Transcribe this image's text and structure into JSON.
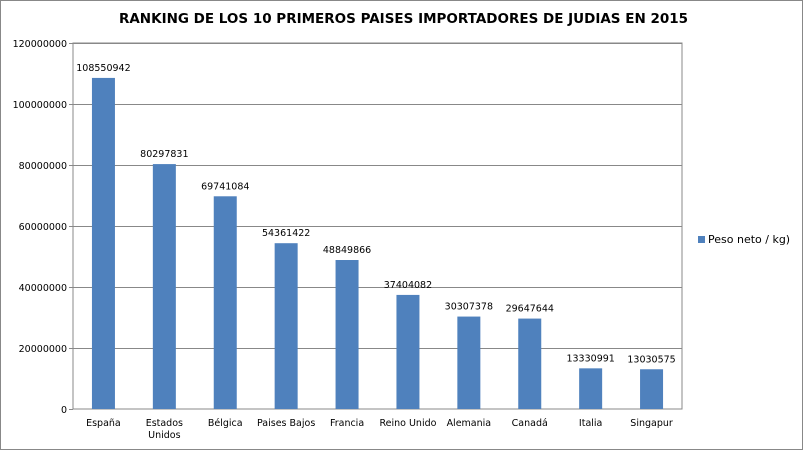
{
  "chart_data": {
    "type": "bar",
    "title": "RANKING DE LOS 10 PRIMEROS PAISES IMPORTADORES DE JUDIAS EN 2015",
    "xlabel": "",
    "ylabel": "",
    "categories": [
      [
        "España"
      ],
      [
        "Estados",
        "Unidos"
      ],
      [
        "Bélgica"
      ],
      [
        "Paises Bajos"
      ],
      [
        "Francia"
      ],
      [
        "Reino Unido"
      ],
      [
        "Alemania"
      ],
      [
        "Canadá"
      ],
      [
        "Italia"
      ],
      [
        "Singapur"
      ]
    ],
    "series": [
      {
        "name": "Peso neto / kg)",
        "color": "#4f81bd",
        "values": [
          108550942,
          80297831,
          69741084,
          54361422,
          48849866,
          37404082,
          30307378,
          29647644,
          13330991,
          13030575
        ]
      }
    ],
    "ylim": [
      0,
      120000000
    ],
    "yticks": [
      "0",
      "20000000",
      "40000000",
      "60000000",
      "80000000",
      "100000000",
      "120000000"
    ],
    "grid": true,
    "legend_position": "right"
  }
}
